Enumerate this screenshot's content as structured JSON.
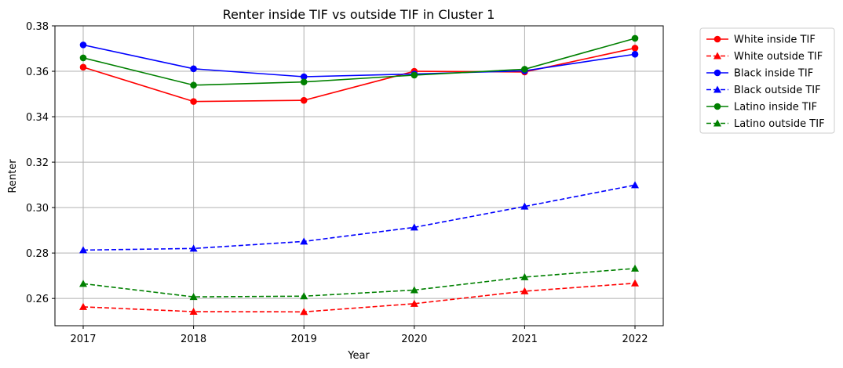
{
  "chart_data": {
    "type": "line",
    "title": "Renter inside TIF vs outside TIF in Cluster 1",
    "xlabel": "Year",
    "ylabel": "Renter",
    "x": [
      "2017",
      "2018",
      "2019",
      "2020",
      "2021",
      "2022"
    ],
    "ylim": [
      0.248,
      0.38
    ],
    "yticks": [
      "0.26",
      "0.28",
      "0.30",
      "0.32",
      "0.34",
      "0.36",
      "0.38"
    ],
    "grid": true,
    "legend_position": "outside right, top",
    "series": [
      {
        "name": "White inside TIF",
        "color": "#ff0000",
        "linestyle": "solid",
        "marker": "circle",
        "values": [
          0.3618,
          0.3467,
          0.3472,
          0.36,
          0.3597,
          0.3702
        ]
      },
      {
        "name": "White outside TIF",
        "color": "#ff0000",
        "linestyle": "dashed",
        "marker": "triangle",
        "values": [
          0.2563,
          0.2542,
          0.2541,
          0.2577,
          0.2632,
          0.2667
        ]
      },
      {
        "name": "Black inside TIF",
        "color": "#0000ff",
        "linestyle": "solid",
        "marker": "circle",
        "values": [
          0.3716,
          0.3611,
          0.3576,
          0.3588,
          0.3602,
          0.3675
        ]
      },
      {
        "name": "Black outside TIF",
        "color": "#0000ff",
        "linestyle": "dashed",
        "marker": "triangle",
        "values": [
          0.2813,
          0.282,
          0.2851,
          0.2913,
          0.3005,
          0.3099
        ]
      },
      {
        "name": "Latino inside TIF",
        "color": "#008000",
        "linestyle": "solid",
        "marker": "circle",
        "values": [
          0.3659,
          0.3539,
          0.3553,
          0.3583,
          0.3609,
          0.3745
        ]
      },
      {
        "name": "Latino outside TIF",
        "color": "#008000",
        "linestyle": "dashed",
        "marker": "triangle",
        "values": [
          0.2665,
          0.2607,
          0.261,
          0.2637,
          0.2694,
          0.2732
        ]
      }
    ]
  }
}
